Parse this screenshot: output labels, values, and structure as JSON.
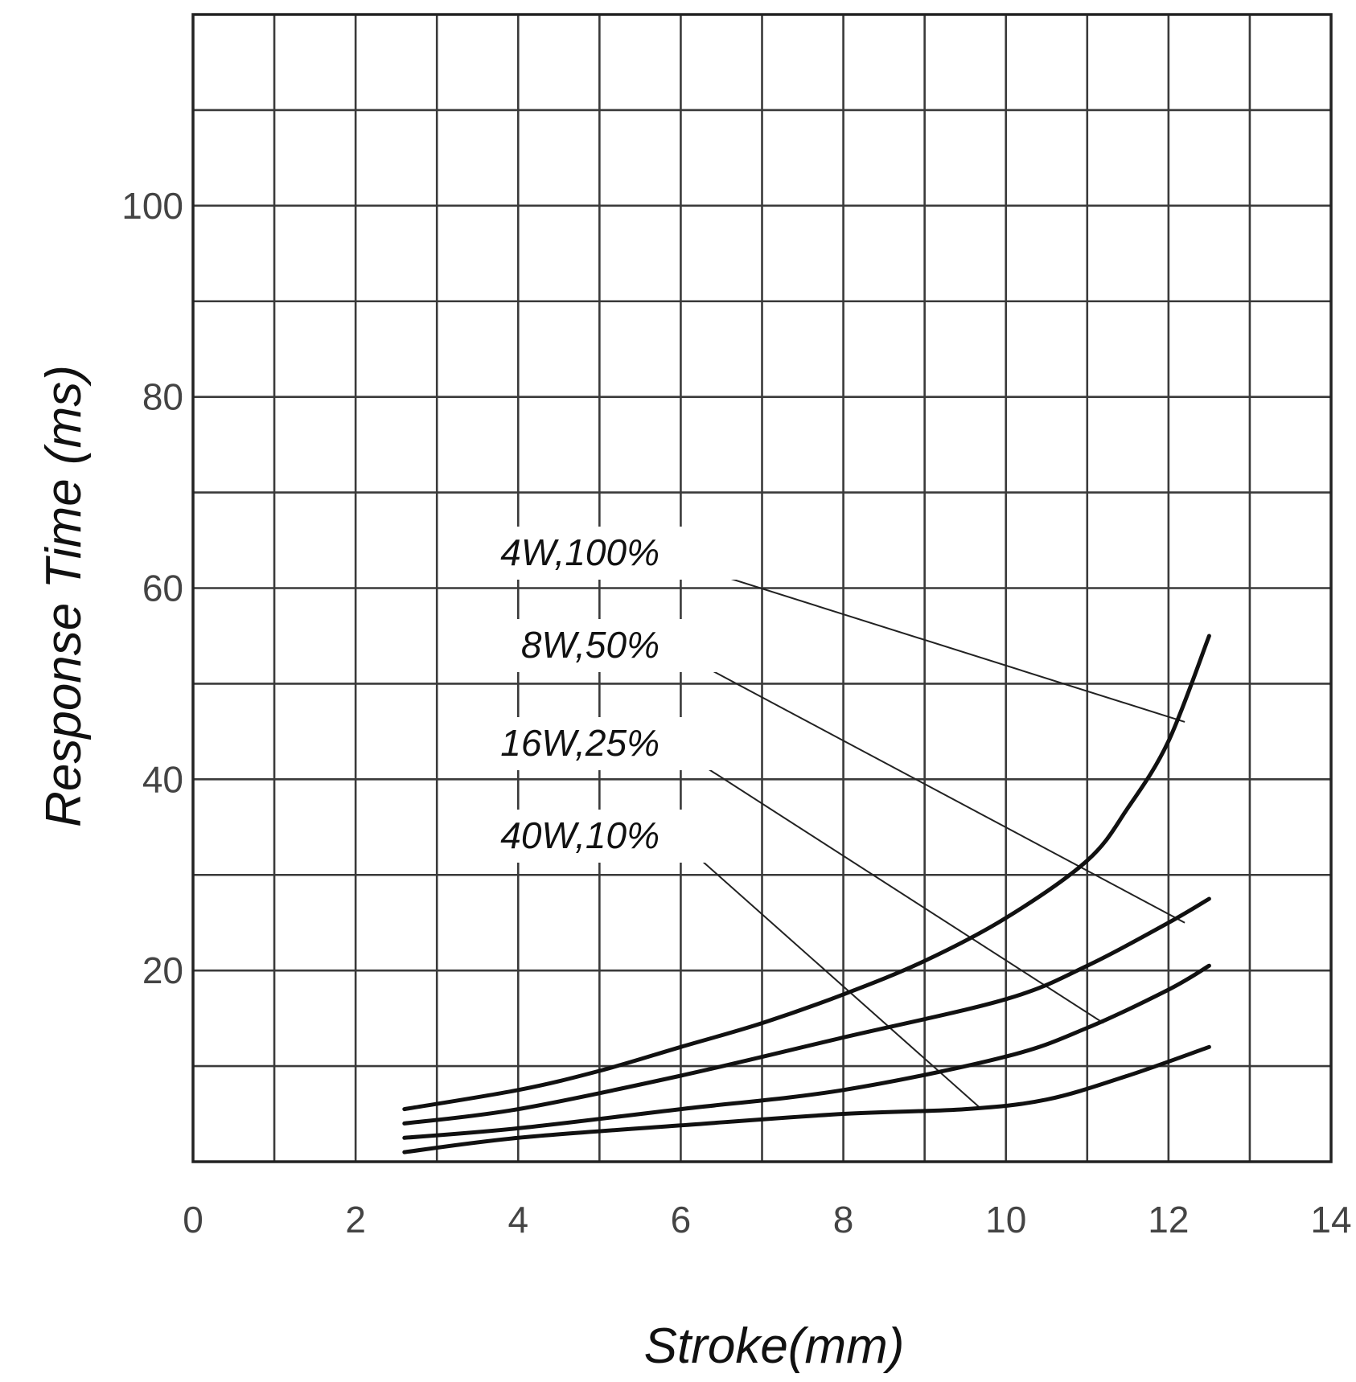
{
  "chart_data": {
    "type": "line",
    "xlabel": "Stroke(mm)",
    "ylabel": "Response Time (ms)",
    "xlim": [
      0,
      14
    ],
    "ylim": [
      0,
      120
    ],
    "x_ticks": [
      "0",
      "2",
      "4",
      "6",
      "8",
      "10",
      "12",
      "14"
    ],
    "y_ticks": [
      "20",
      "40",
      "60",
      "80",
      "100"
    ],
    "x_tick_values": [
      0,
      2,
      4,
      6,
      8,
      10,
      12,
      14
    ],
    "y_tick_values": [
      20,
      40,
      60,
      80,
      100
    ],
    "grid": true,
    "series": [
      {
        "name": "4W,100%",
        "x": [
          2.6,
          4,
          5,
          6,
          7,
          8,
          9,
          10,
          11,
          11.5,
          12,
          12.5
        ],
        "y": [
          5.5,
          7.5,
          9.5,
          12,
          14.5,
          17.5,
          21,
          25.5,
          31.5,
          37,
          44,
          55
        ]
      },
      {
        "name": "8W,50%",
        "x": [
          2.6,
          4,
          6,
          8,
          10,
          11,
          12,
          12.5
        ],
        "y": [
          4,
          5.5,
          9,
          13,
          17,
          20.5,
          25,
          27.5
        ]
      },
      {
        "name": "16W,25%",
        "x": [
          2.6,
          4,
          6,
          8,
          10,
          11,
          12,
          12.5
        ],
        "y": [
          2.5,
          3.5,
          5.5,
          7.5,
          11,
          14,
          18,
          20.5
        ]
      },
      {
        "name": "40W,10%",
        "x": [
          2.6,
          4,
          6,
          8,
          9.5,
          10.5,
          11.5,
          12.5
        ],
        "y": [
          1,
          2.5,
          3.8,
          5,
          5.5,
          6.5,
          9,
          12
        ]
      }
    ],
    "annotations": [
      {
        "text": "4W,100%",
        "points_to": {
          "x": 12.2,
          "y": 46
        }
      },
      {
        "text": "8W,50%",
        "points_to": {
          "x": 12.2,
          "y": 25
        }
      },
      {
        "text": "16W,25%",
        "points_to": {
          "x": 11.2,
          "y": 14.5
        }
      },
      {
        "text": "40W,10%",
        "points_to": {
          "x": 9.7,
          "y": 5.5
        }
      }
    ]
  }
}
